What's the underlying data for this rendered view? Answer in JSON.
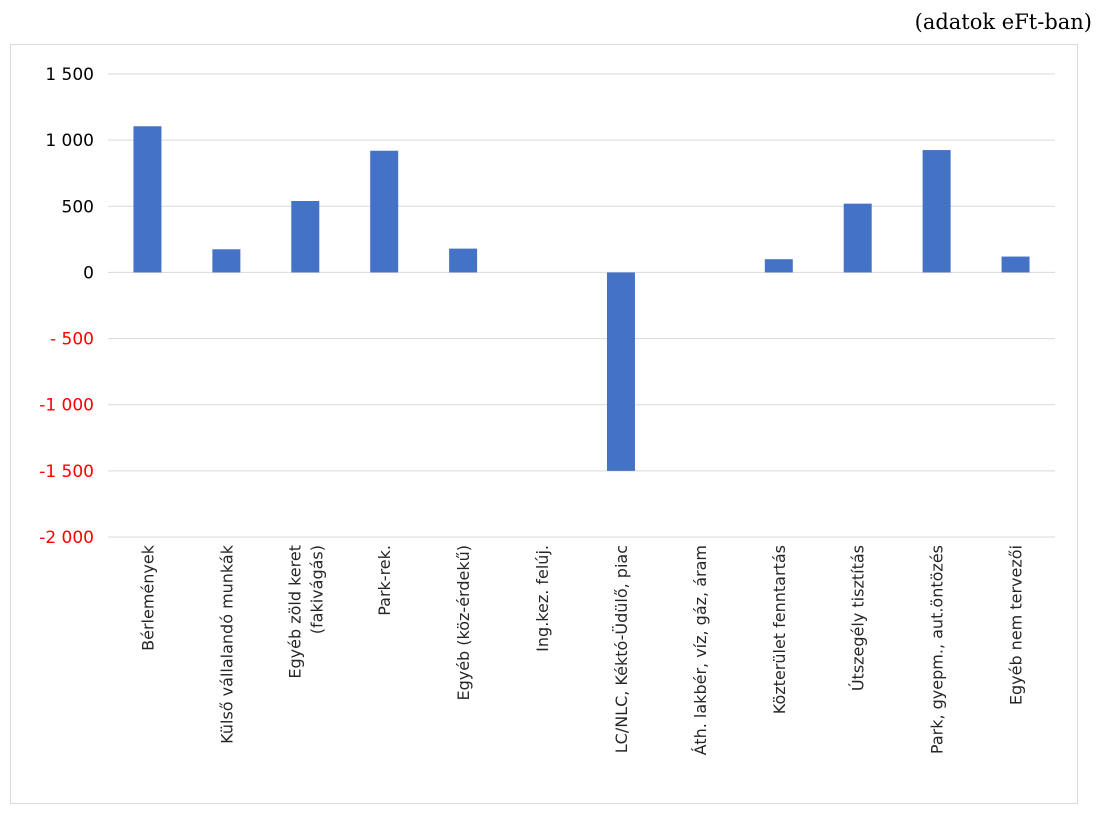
{
  "unit_note": "(adatok eFt-ban)",
  "colors": {
    "bar": "#4472C4",
    "grid": "#d9d9d9",
    "negative_tick": "#ff0000",
    "positive_tick": "#000000"
  },
  "chart_data": {
    "type": "bar",
    "categories": [
      [
        "Bérlemények"
      ],
      [
        "Külső vállalandó munkák"
      ],
      [
        "Egyéb zöld keret",
        "(fakivágás)"
      ],
      [
        "Park-rek."
      ],
      [
        "Egyéb (köz-érdekű)"
      ],
      [
        "Ing.kez. felúj."
      ],
      [
        "LC/NLC, Kéktó-Üdülő, piac"
      ],
      [
        "Áth. lakbér, víz, gáz, áram"
      ],
      [
        "Közterület fenntartás"
      ],
      [
        "Útszegély tisztítás"
      ],
      [
        "Park, gyepm., aut.öntözés"
      ],
      [
        "Egyéb nem tervezői"
      ]
    ],
    "values": [
      1105,
      175,
      540,
      920,
      180,
      0,
      -1500,
      0,
      100,
      520,
      925,
      120
    ],
    "ylim": [
      -2000,
      1500
    ],
    "yticks": [
      1500,
      1000,
      500,
      0,
      -500,
      -1000,
      -1500,
      -2000
    ],
    "ytick_labels": [
      "1 500",
      "1 000",
      "500",
      "0",
      "- 500",
      "-1 000",
      "-1 500",
      "-2 000"
    ],
    "grid": true,
    "legend": "none"
  }
}
